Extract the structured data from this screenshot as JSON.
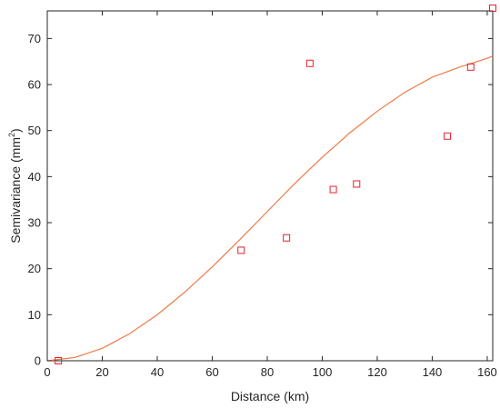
{
  "chart_data": {
    "type": "scatter",
    "xlabel": "Distance (km)",
    "ylabel": {
      "main": "Semivariance (mm",
      "superscript": "2",
      "close": ")"
    },
    "xlim": [
      0,
      162
    ],
    "ylim": [
      0,
      76
    ],
    "xticks": [
      "0",
      "20",
      "40",
      "60",
      "80",
      "100",
      "120",
      "140",
      "160"
    ],
    "yticks": [
      "0",
      "10",
      "20",
      "30",
      "40",
      "50",
      "60",
      "70"
    ],
    "grid": false,
    "marker_color": "#e8202a",
    "line_color": "#f07a47",
    "series": [
      {
        "kind": "points",
        "marker": "square",
        "x": [
          4.0,
          70.5,
          87.0,
          95.5,
          104.0,
          112.5,
          145.5,
          154.0,
          162.0
        ],
        "y": [
          0.0,
          24.0,
          26.7,
          64.6,
          37.2,
          38.4,
          48.8,
          63.8,
          76.6
        ]
      },
      {
        "kind": "fitted-curve",
        "x": [
          0,
          10,
          20,
          30,
          40,
          50,
          60,
          70,
          80,
          90,
          100,
          110,
          120,
          130,
          140,
          150,
          160,
          162
        ],
        "y": [
          0,
          0.7,
          2.7,
          5.9,
          10.0,
          14.9,
          20.4,
          26.3,
          32.4,
          38.5,
          44.2,
          49.5,
          54.2,
          58.3,
          61.6,
          63.8,
          65.7,
          66.2
        ]
      }
    ]
  }
}
